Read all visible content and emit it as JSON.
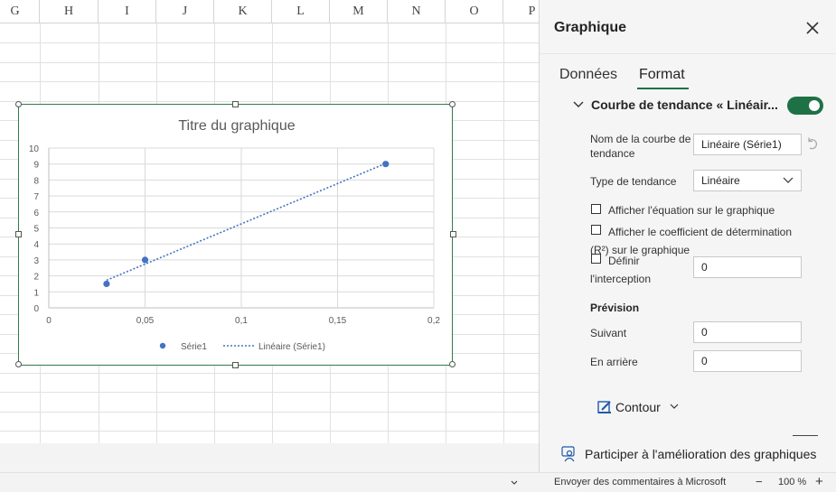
{
  "sheet": {
    "columns": [
      "G",
      "H",
      "I",
      "J",
      "K",
      "L",
      "M",
      "N",
      "O",
      "P"
    ]
  },
  "chart_data": {
    "type": "scatter",
    "title": "Titre du graphique",
    "xlabel": "",
    "ylabel": "",
    "xlim": [
      0,
      0.2
    ],
    "ylim": [
      0,
      10
    ],
    "x_ticks": [
      "0",
      "0,05",
      "0,1",
      "0,15",
      "0,2"
    ],
    "y_ticks": [
      "0",
      "1",
      "2",
      "3",
      "4",
      "5",
      "6",
      "7",
      "8",
      "9",
      "10"
    ],
    "grid": true,
    "legend_position": "bottom",
    "series": [
      {
        "name": "Série1",
        "x": [
          0.03,
          0.05,
          0.175
        ],
        "y": [
          1.5,
          3,
          9
        ],
        "color": "#4472c4",
        "marker": "circle"
      }
    ],
    "trendline": {
      "name": "Linéaire (Série1)",
      "type": "linear",
      "style": "dotted",
      "color": "#4472c4"
    },
    "legend": [
      "Série1",
      "Linéaire (Série1)"
    ]
  },
  "pane": {
    "title": "Graphique",
    "close_icon": "close-icon",
    "tabs": [
      {
        "label": "Données",
        "active": false
      },
      {
        "label": "Format",
        "active": true
      }
    ],
    "section_title": "Courbe de tendance « Linéair...",
    "toggle_on": true,
    "name_label": "Nom de la courbe de tendance",
    "name_value": "Linéaire (Série1)",
    "type_label": "Type de tendance",
    "type_value": "Linéaire",
    "show_equation": "Afficher l'équation sur le graphique",
    "show_r2": "Afficher le coefficient de détermination (R²) sur le graphique",
    "set_intercept": "Définir l'interception",
    "intercept_value": "0",
    "forecast_title": "Prévision",
    "forward_label": "Suivant",
    "forward_value": "0",
    "backward_label": "En arrière",
    "backward_value": "0",
    "contour_label": "Contour",
    "feedback_label": "Participer à l'amélioration des graphiques"
  },
  "status": {
    "feedback": "Envoyer des commentaires à Microsoft",
    "zoom": "100 %",
    "minus": "−",
    "plus": "+"
  },
  "colors": {
    "accent": "#1e7145",
    "series": "#4472c4",
    "chart_border": "#2f7d4a"
  }
}
